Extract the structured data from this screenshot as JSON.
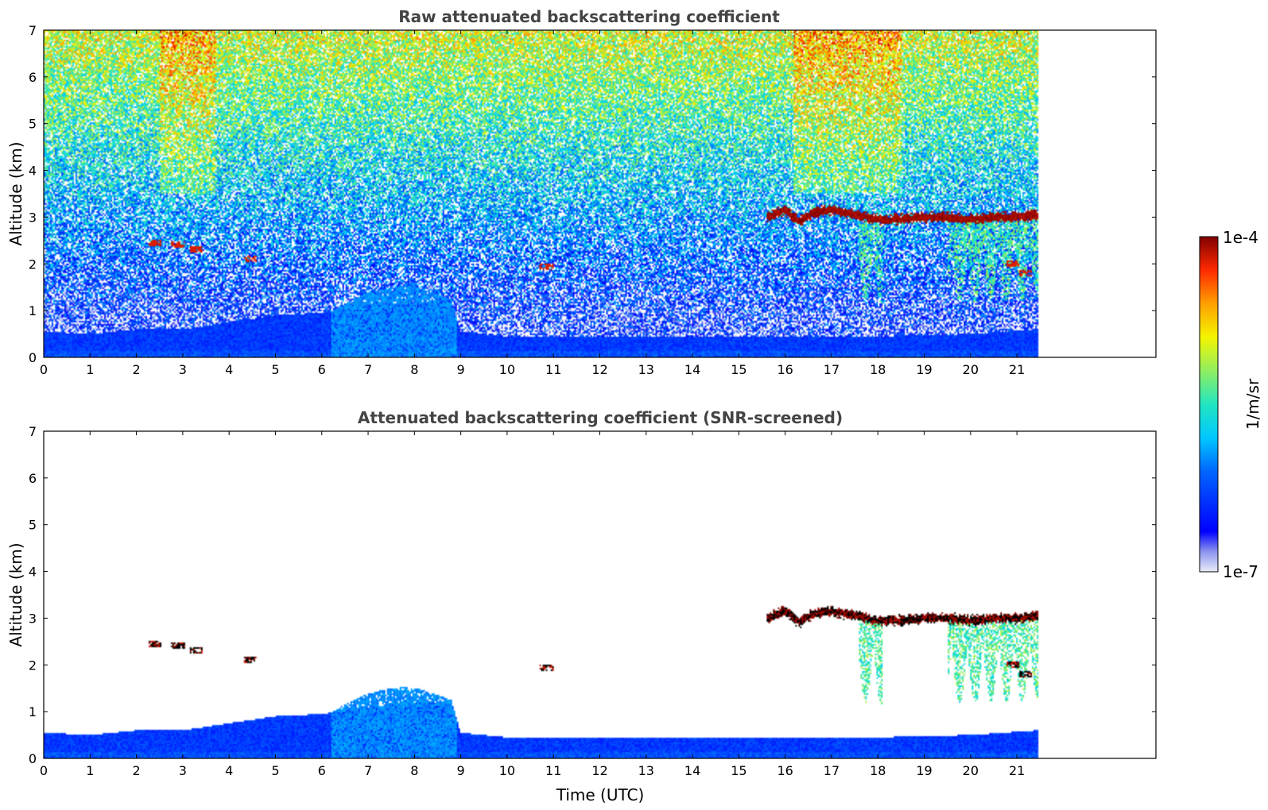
{
  "chart_data": [
    {
      "type": "heatmap",
      "title": "Raw attenuated backscattering coefficient",
      "ylabel": "Altitude (km)",
      "xlabel": "",
      "xlim": [
        0,
        24
      ],
      "ylim": [
        0,
        7
      ],
      "x_ticks": [
        "0",
        "1",
        "2",
        "3",
        "4",
        "5",
        "6",
        "7",
        "8",
        "9",
        "10",
        "11",
        "12",
        "13",
        "14",
        "15",
        "16",
        "17",
        "18",
        "19",
        "20",
        "21"
      ],
      "y_ticks": [
        "0",
        "1",
        "2",
        "3",
        "4",
        "5",
        "6",
        "7"
      ],
      "data_extent_hours": [
        0,
        21.45
      ],
      "screened": false
    },
    {
      "type": "heatmap",
      "title": "Attenuated backscattering coefficient (SNR-screened)",
      "ylabel": "Altitude (km)",
      "xlabel": "Time (UTC)",
      "xlim": [
        0,
        24
      ],
      "ylim": [
        0,
        7
      ],
      "x_ticks": [
        "0",
        "1",
        "2",
        "3",
        "4",
        "5",
        "6",
        "7",
        "8",
        "9",
        "10",
        "11",
        "12",
        "13",
        "14",
        "15",
        "16",
        "17",
        "18",
        "19",
        "20",
        "21"
      ],
      "y_ticks": [
        "0",
        "1",
        "2",
        "3",
        "4",
        "5",
        "6",
        "7"
      ],
      "data_extent_hours": [
        0,
        21.45
      ],
      "screened": true
    }
  ],
  "colorbar": {
    "max_label": "1e-4",
    "min_label": "1e-7",
    "unit_label": "1/m/sr",
    "scale": "log",
    "colormap": "jet"
  },
  "features": {
    "boundary_layer": [
      [
        0,
        0.55
      ],
      [
        1,
        0.5
      ],
      [
        2,
        0.6
      ],
      [
        3,
        0.6
      ],
      [
        4,
        0.75
      ],
      [
        5,
        0.9
      ],
      [
        6,
        0.95
      ],
      [
        7,
        1.1
      ],
      [
        8,
        1.2
      ],
      [
        8.8,
        1.2
      ],
      [
        9,
        0.55
      ],
      [
        10,
        0.45
      ],
      [
        12,
        0.45
      ],
      [
        14,
        0.45
      ],
      [
        16,
        0.45
      ],
      [
        18,
        0.45
      ],
      [
        20,
        0.5
      ],
      [
        21.45,
        0.6
      ]
    ],
    "cloud_band": [
      [
        15.6,
        3.0
      ],
      [
        16.0,
        3.15
      ],
      [
        16.3,
        2.9
      ],
      [
        16.6,
        3.1
      ],
      [
        17.0,
        3.15
      ],
      [
        17.5,
        3.05
      ],
      [
        18.0,
        2.95
      ],
      [
        18.5,
        2.95
      ],
      [
        19.0,
        3.0
      ],
      [
        19.5,
        3.0
      ],
      [
        20.0,
        2.95
      ],
      [
        20.5,
        3.0
      ],
      [
        21.0,
        3.0
      ],
      [
        21.45,
        3.05
      ]
    ],
    "cloud_fragments": [
      [
        2.4,
        2.45
      ],
      [
        2.9,
        2.4
      ],
      [
        3.3,
        2.3
      ],
      [
        4.45,
        2.1
      ],
      [
        10.85,
        1.95
      ],
      [
        20.9,
        2.0
      ],
      [
        21.2,
        1.8
      ]
    ],
    "virga_regions": [
      [
        17.6,
        18.1
      ],
      [
        19.5,
        21.45
      ]
    ],
    "aerosol_hump": [
      6.2,
      8.9
    ]
  }
}
